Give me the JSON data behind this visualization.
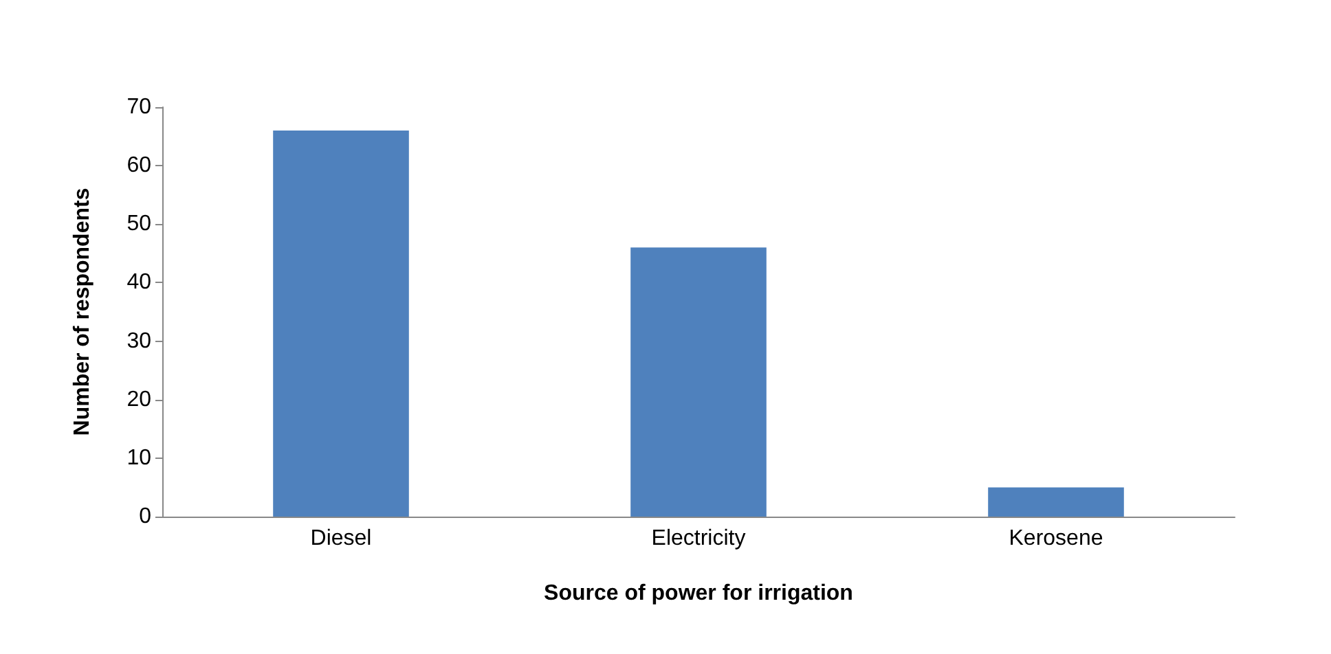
{
  "chart_data": {
    "type": "bar",
    "xlabel": "Source of power for irrigation",
    "ylabel": "Number of respondents",
    "categories": [
      "Diesel",
      "Electricity",
      "Kerosene"
    ],
    "values": [
      66,
      46,
      5
    ],
    "color": "#4f81bd",
    "ylim": [
      0,
      70
    ],
    "yticks": [
      0,
      10,
      20,
      30,
      40,
      50,
      60,
      70
    ],
    "grid": false
  }
}
